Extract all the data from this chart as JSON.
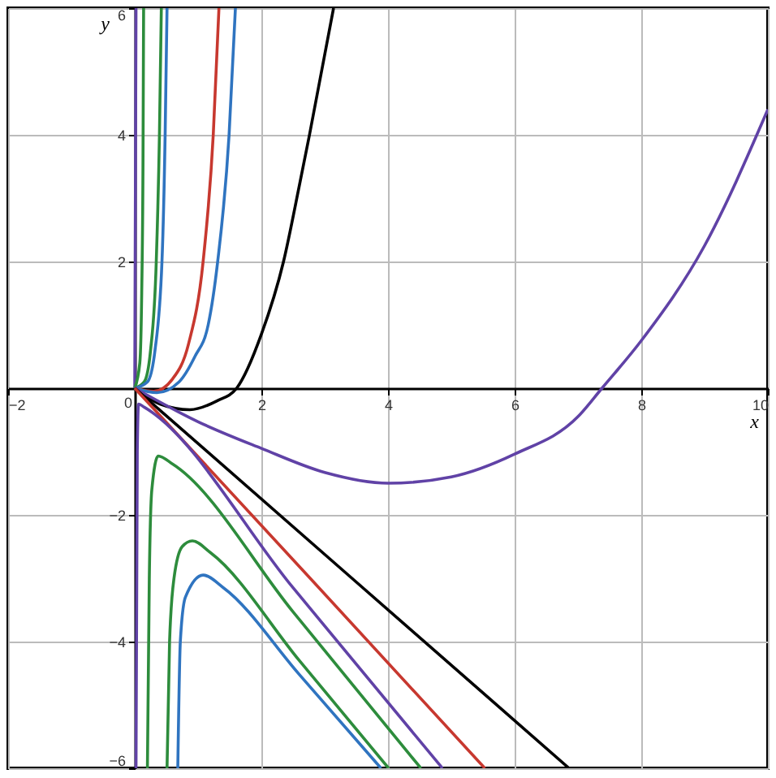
{
  "chart_data": {
    "type": "line",
    "xlabel": "x",
    "ylabel": "y",
    "xlim": [
      -2,
      10
    ],
    "ylim": [
      -6,
      6
    ],
    "xticks": [
      -2,
      0,
      2,
      4,
      6,
      8,
      10
    ],
    "yticks": [
      -6,
      -4,
      -2,
      {
        "value": 0,
        "label": null
      },
      2,
      4,
      6
    ],
    "grid": true,
    "line_style": "solid",
    "series": [
      {
        "color": "#6042a6",
        "x": [
          0,
          0.01,
          0.02
        ],
        "values": [
          0,
          3,
          6
        ]
      },
      {
        "color": "#2d8c3c",
        "x": [
          0,
          0.08,
          0.11,
          0.13,
          0.14
        ],
        "values": [
          0,
          0.4,
          1.5,
          3.5,
          6
        ]
      },
      {
        "color": "#2d8c3c",
        "x": [
          0,
          0.15,
          0.25,
          0.34,
          0.39,
          0.42
        ],
        "values": [
          0,
          0.1,
          0.6,
          2,
          4,
          6
        ]
      },
      {
        "color": "#2f74c0",
        "x": [
          0,
          0.2,
          0.32,
          0.43,
          0.48,
          0.51
        ],
        "values": [
          0,
          0.1,
          0.6,
          2,
          4,
          6
        ]
      },
      {
        "color": "#c7382f",
        "x": [
          0,
          0.3,
          0.6,
          0.85,
          1.08,
          1.24,
          1.33
        ],
        "values": [
          0,
          -0.05,
          0.15,
          0.7,
          2,
          4,
          6
        ]
      },
      {
        "color": "#2f74c0",
        "x": [
          0,
          0.35,
          0.7,
          0.95,
          1.16,
          1.31,
          1.49,
          1.59
        ],
        "values": [
          0,
          -0.07,
          0.1,
          0.5,
          1,
          2,
          4,
          6
        ]
      },
      {
        "color": "#000000",
        "x": [
          0,
          0.4,
          0.87,
          1.3,
          1.61,
          2,
          2.35,
          2.6,
          2.76,
          3.14
        ],
        "values": [
          0,
          -0.25,
          -0.34,
          -0.2,
          0,
          0.85,
          2,
          3.2,
          4,
          6
        ]
      },
      {
        "color": "#6042a6",
        "x": [
          0,
          1,
          2,
          3,
          4,
          5,
          6,
          7,
          7.38,
          8,
          9,
          10
        ],
        "values": [
          0,
          -0.53,
          -0.95,
          -1.33,
          -1.5,
          -1.4,
          -1.04,
          -0.45,
          0,
          0.75,
          2.25,
          4.4
        ]
      },
      {
        "color": "#000000",
        "x": [
          0,
          3.43,
          6.86
        ],
        "values": [
          0,
          -3,
          -6
        ]
      },
      {
        "color": "#c7382f",
        "x": [
          0,
          2.77,
          5.53
        ],
        "values": [
          0,
          -3,
          -6
        ]
      },
      {
        "color": "#6042a6",
        "x": [
          0.02,
          0.04,
          0.06,
          0.15,
          2.5,
          4.86
        ],
        "values": [
          -6,
          -1,
          -0.25,
          -0.3,
          -3.15,
          -6
        ]
      },
      {
        "color": "#2d8c3c",
        "x": [
          0.2,
          0.23,
          0.27,
          0.37,
          0.6,
          2.5,
          4.52
        ],
        "values": [
          -6,
          -3,
          -1.6,
          -1.07,
          -1.2,
          -3.53,
          -6
        ]
      },
      {
        "color": "#2d8c3c",
        "x": [
          0.51,
          0.55,
          0.62,
          0.75,
          0.91,
          1.2,
          2.6,
          4.01
        ],
        "values": [
          -6,
          -4,
          -3,
          -2.5,
          -2.41,
          -2.6,
          -4.3,
          -6
        ]
      },
      {
        "color": "#2f74c0",
        "x": [
          0.68,
          0.72,
          0.8,
          1.08,
          1.4,
          2.6,
          3.89
        ],
        "values": [
          -6,
          -4,
          -3.3,
          -2.95,
          -3.15,
          -4.52,
          -6
        ]
      }
    ]
  }
}
